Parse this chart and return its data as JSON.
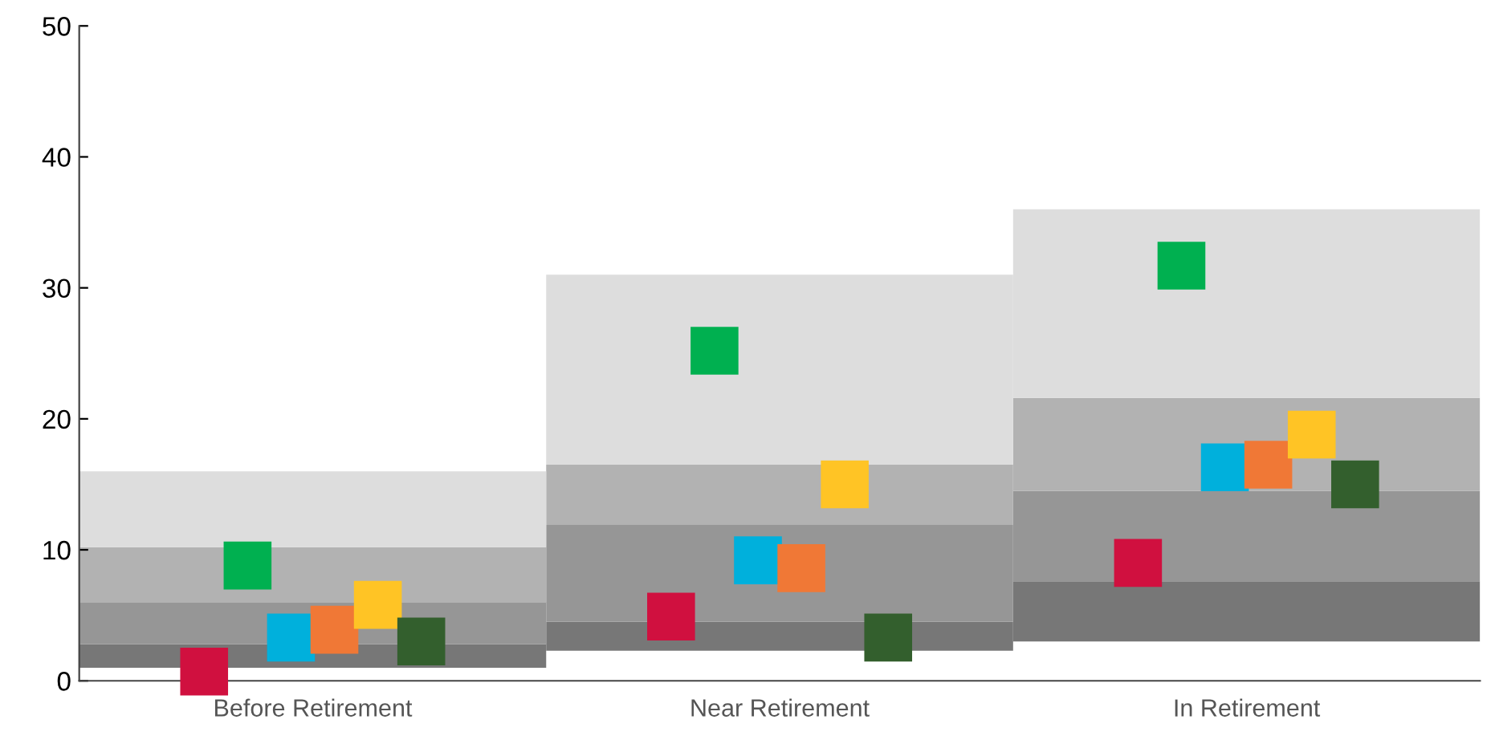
{
  "chart_data": {
    "type": "bar",
    "stacked": true,
    "categories": [
      "Before Retirement",
      "Near Retirement",
      "In Retirement"
    ],
    "series": [
      {
        "color": "#777777",
        "base": [
          1.0,
          2.3,
          3.0
        ],
        "values": [
          1.8,
          2.2,
          4.6
        ]
      },
      {
        "color": "#969696",
        "values": [
          3.2,
          7.4,
          6.9
        ]
      },
      {
        "color": "#b2b2b2",
        "values": [
          4.2,
          4.6,
          7.1
        ]
      },
      {
        "color": "#dddddd",
        "values": [
          5.8,
          14.5,
          14.4
        ]
      },
      {
        "type": "scatter",
        "marker": "square",
        "color": "#d0103f",
        "x": [
          "Before Retirement",
          "Near Retirement",
          "In Retirement"
        ],
        "values": [
          0.7,
          4.9,
          9.0
        ]
      },
      {
        "type": "scatter",
        "marker": "square",
        "color": "#00b050",
        "x": [
          "Before Retirement",
          "Near Retirement",
          "In Retirement"
        ],
        "values": [
          8.8,
          25.2,
          31.7
        ]
      },
      {
        "type": "scatter",
        "marker": "square",
        "color": "#00b0dc",
        "x": [
          "Before Retirement",
          "Near Retirement",
          "In Retirement"
        ],
        "values": [
          3.3,
          9.2,
          16.3
        ]
      },
      {
        "type": "scatter",
        "marker": "square",
        "color": "#f07836",
        "x": [
          "Before Retirement",
          "Near Retirement",
          "In Retirement"
        ],
        "values": [
          3.9,
          8.6,
          16.5
        ]
      },
      {
        "type": "scatter",
        "marker": "square",
        "color": "#ffc425",
        "x": [
          "Before Retirement",
          "Near Retirement",
          "In Retirement"
        ],
        "values": [
          5.8,
          15.0,
          18.8
        ]
      },
      {
        "type": "scatter",
        "marker": "square",
        "color": "#335f2d",
        "x": [
          "Before Retirement",
          "Near Retirement",
          "In Retirement"
        ],
        "values": [
          3.0,
          3.3,
          15.0
        ]
      }
    ],
    "ylim": [
      0,
      50
    ],
    "yticks": [
      0,
      10,
      20,
      30,
      40,
      50
    ],
    "grid": false,
    "legend": false
  }
}
